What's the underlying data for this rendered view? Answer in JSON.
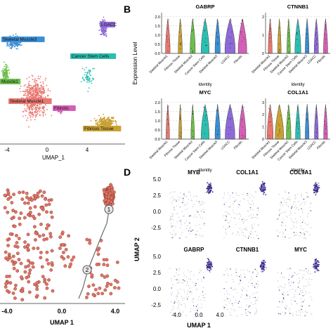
{
  "panels": {
    "A": {
      "cluster_labels": [
        "LGACC",
        "Skeletal Muscle3",
        "Cancer Stem Cells",
        "Fibrotic",
        "Muscle1",
        "Skeletal Muscle1",
        "Fibrous Tissue"
      ],
      "x_ticks": [
        "-4",
        "0",
        "4"
      ],
      "x_label": "UMAP_1"
    },
    "B": {
      "letter": "B",
      "y_label": "Expression Level",
      "x_label": "Identity",
      "categories": [
        "Skeletal Muscle1",
        "Fibrous Tissue",
        "Skeletal Muscle2",
        "Cancer Stem Cells",
        "Skeletal Muscle3",
        "LGACC",
        "Fibrotic"
      ],
      "genes": [
        "GABRP",
        "CTNNB1",
        "MYC",
        "COL1A1"
      ],
      "y_ticks_gabrp": [
        "0.0",
        "0.5",
        "1.0",
        "1.5",
        "2.0"
      ],
      "y_ticks_ctnnb1": [
        "0",
        "1",
        "2"
      ],
      "y_ticks_myc": [
        "0.0",
        "0.5",
        "1.0",
        "1.5",
        "2.0"
      ],
      "y_ticks_col1a1": [
        "0",
        "1",
        "2",
        "3"
      ]
    },
    "C": {
      "x_ticks": [
        "-4.0",
        "0.0",
        "4.0"
      ],
      "x_label": "UMAP 1",
      "node_labels": [
        "1",
        "2"
      ]
    },
    "D": {
      "letter": "D",
      "genes": [
        "MYB",
        "COL1A1",
        "COL9A1",
        "GABRP",
        "CTNNB1",
        "MYC"
      ],
      "y_ticks_top": [
        "5.0",
        "2.5",
        "0.0",
        "-2.5"
      ],
      "y_ticks_bottom": [
        "5.0",
        "2.5",
        "0.0",
        "-2.5"
      ],
      "x_ticks": [
        "-4.0",
        "0.0",
        "4.0"
      ],
      "y_label": "UMAP 2",
      "x_label": "UMAP 1"
    }
  },
  "colors": {
    "lgacc": "#8e6ad8",
    "muscle": "#e8776f",
    "fibrous": "#c9a133",
    "stem": "#2cbfb0",
    "fibrotic": "#d45fb6",
    "muscle1": "#6cbf4a",
    "muscle3": "#3b8fd6",
    "gabrp": "#e0a94a",
    "purple": "#3c2a86"
  }
}
